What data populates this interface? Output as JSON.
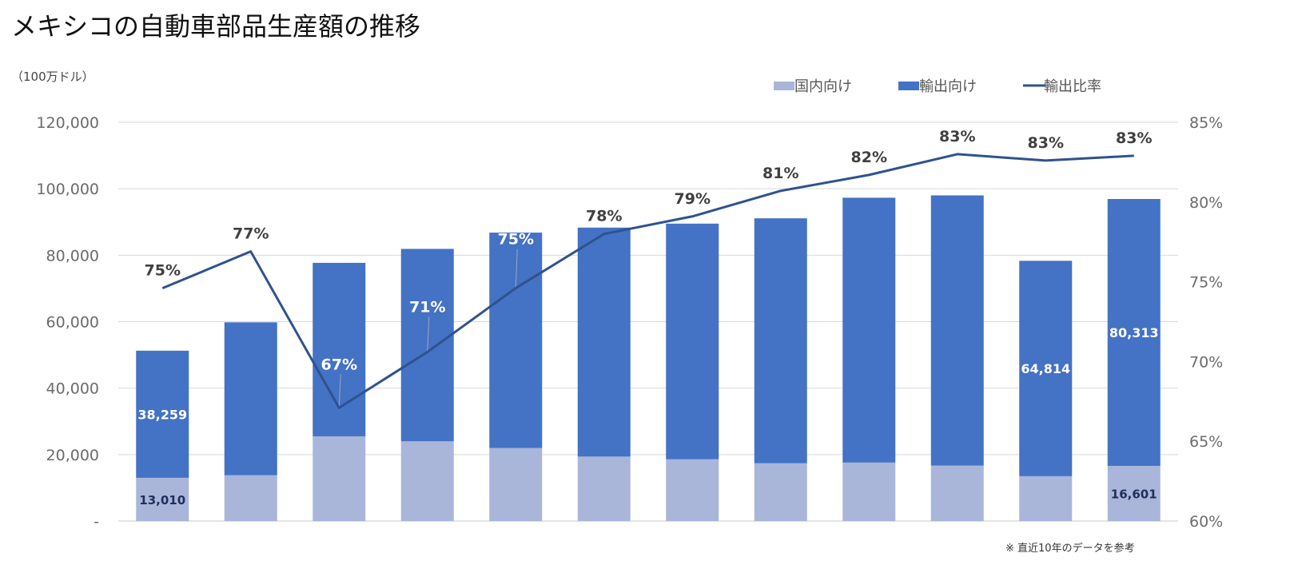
{
  "chart_data": {
    "type": "bar",
    "title": "メキシコの自動車部品生産額の推移",
    "unit_label": "（100万ドル）",
    "note": "※ 直近10年のデータを参考",
    "y_left": {
      "ylim": [
        0,
        120000
      ],
      "ticks": [
        "-",
        "20,000",
        "40,000",
        "60,000",
        "80,000",
        "100,000",
        "120,000"
      ]
    },
    "y_right": {
      "ylim": [
        0.6,
        0.85
      ],
      "ticks": [
        "60%",
        "65%",
        "70%",
        "75%",
        "80%",
        "85%"
      ]
    },
    "grid": true,
    "legend_placement": "top-right",
    "stacked": true,
    "series": [
      {
        "name": "国内向け",
        "kind": "bar",
        "color": "#a9b6da",
        "values": [
          13010,
          13800,
          25500,
          24000,
          22000,
          19400,
          18600,
          17400,
          17600,
          16700,
          13500,
          16601
        ]
      },
      {
        "name": "輸出向け",
        "kind": "bar",
        "color": "#4472c4",
        "values": [
          38259,
          46000,
          52200,
          57900,
          64800,
          68900,
          70900,
          73700,
          79700,
          81300,
          64814,
          80313
        ]
      },
      {
        "name": "輸出比率",
        "kind": "line",
        "axis": "right",
        "color": "#2f528f",
        "values": [
          0.746,
          0.769,
          0.671,
          0.706,
          0.746,
          0.78,
          0.791,
          0.807,
          0.817,
          0.83,
          0.826,
          0.829
        ]
      }
    ],
    "bar_value_labels": [
      {
        "series": 0,
        "index": 0,
        "text": "13,010"
      },
      {
        "series": 0,
        "index": 11,
        "text": "16,601"
      },
      {
        "series": 1,
        "index": 0,
        "text": "38,259"
      },
      {
        "series": 1,
        "index": 10,
        "text": "64,814"
      },
      {
        "series": 1,
        "index": 11,
        "text": "80,313"
      }
    ],
    "pct_labels": [
      "75%",
      "77%",
      "67%",
      "71%",
      "75%",
      "78%",
      "79%",
      "81%",
      "82%",
      "83%",
      "83%",
      "83%"
    ]
  }
}
